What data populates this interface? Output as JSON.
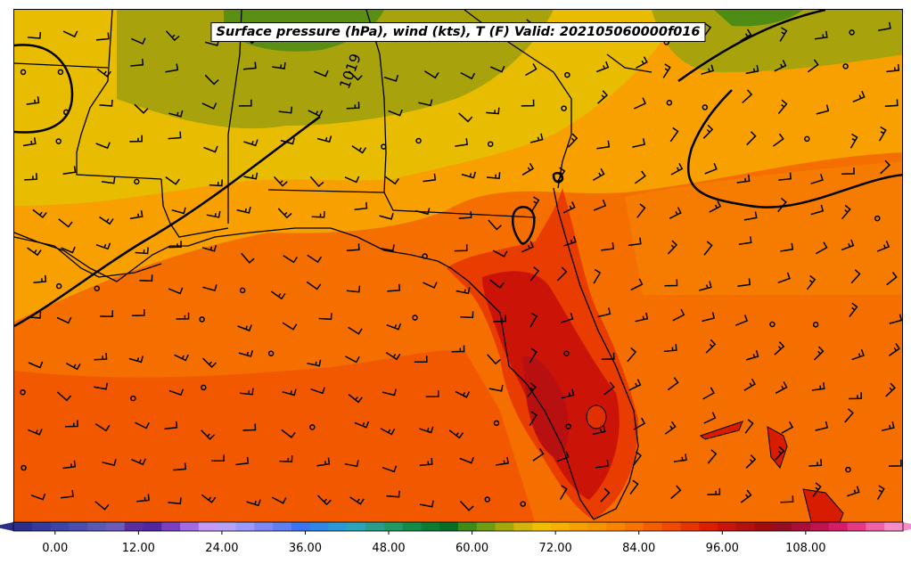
{
  "title": "Surface pressure (hPa), wind (kts), T (F) Valid: 202105060000f016",
  "isobar_label": "1019",
  "colorbar": {
    "ticks": [
      "0.00",
      "12.00",
      "24.00",
      "36.00",
      "48.00",
      "60.00",
      "72.00",
      "84.00",
      "96.00",
      "108.00"
    ],
    "min": -6,
    "max": 122,
    "step": 3,
    "colors": [
      "#2b2f8a",
      "#34399a",
      "#3d44a8",
      "#4a4fae",
      "#5a5ab5",
      "#6a5cb8",
      "#5b2e9e",
      "#5226a0",
      "#7b3fc0",
      "#a46ae0",
      "#c39af5",
      "#b6a3f8",
      "#9a9af8",
      "#7f88f5",
      "#5f7ff2",
      "#3a74ee",
      "#2f86e6",
      "#2a99d6",
      "#2aa6b8",
      "#2a9e8c",
      "#1f9a62",
      "#148c48",
      "#0c7c33",
      "#096e25",
      "#3f8b1a",
      "#6e9d13",
      "#a4a80d",
      "#d4b40a",
      "#f0c000",
      "#f5b000",
      "#f6a000",
      "#f79400",
      "#f78500",
      "#f67300",
      "#f45e00",
      "#f04a00",
      "#e83400",
      "#dc1f00",
      "#c8140c",
      "#b4100e",
      "#a00c10",
      "#950d20",
      "#a80f38",
      "#c0124e",
      "#d41c68",
      "#e43a86",
      "#ef62a8",
      "#f48dc6"
    ]
  }
}
